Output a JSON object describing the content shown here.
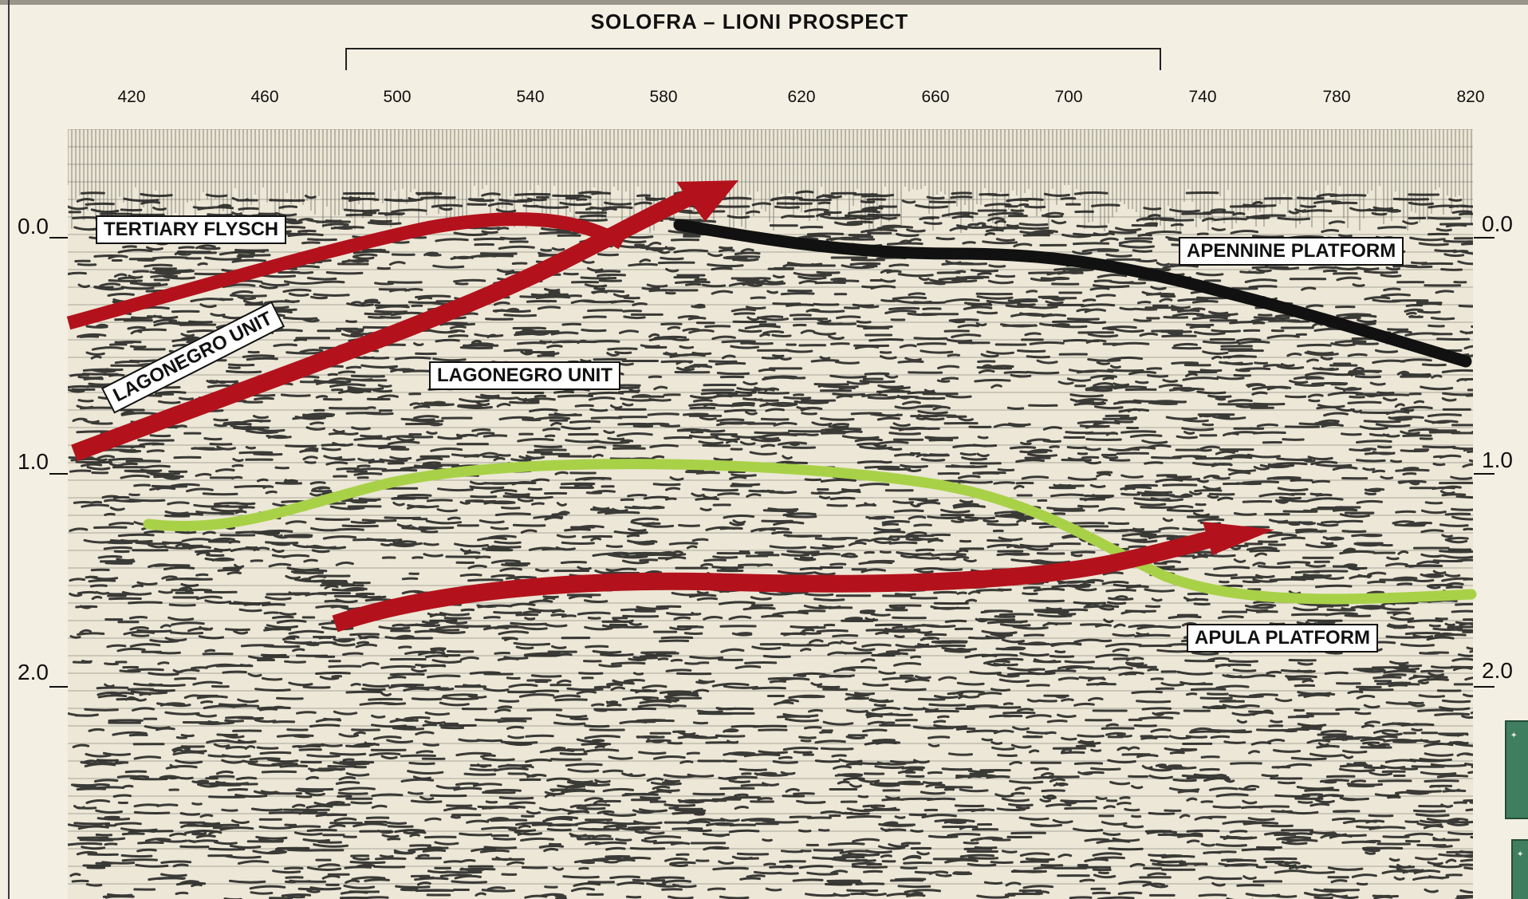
{
  "title": "SOLOFRA – LIONI PROSPECT",
  "x_ticks": [
    "420",
    "460",
    "500",
    "540",
    "580",
    "620",
    "660",
    "700",
    "740",
    "780",
    "820"
  ],
  "y_ticks_left": [
    "0.0",
    "1.0",
    "2.0"
  ],
  "y_ticks_right": [
    "0.0",
    "1.0",
    "2.0"
  ],
  "labels": {
    "tertiary_flysch": "TERTIARY FLYSCH",
    "lagonegro_unit_upper": "LAGONEGRO UNIT",
    "lagonegro_unit_lower": "LAGONEGRO UNIT",
    "apennine_platform": "APENNINE PLATFORM",
    "apula_platform": "APULA PLATFORM"
  },
  "colors": {
    "thrust_red": "#b3121c",
    "horizon_green": "#a9d148",
    "horizon_black": "#111111",
    "background": "#f3efe2"
  }
}
